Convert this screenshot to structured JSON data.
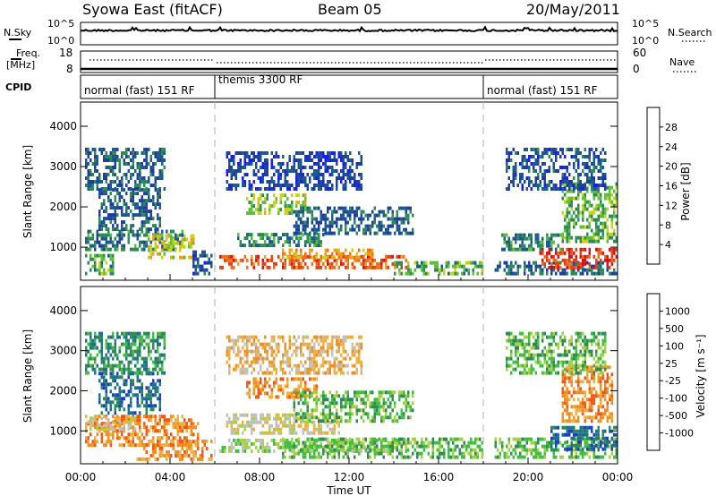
{
  "header": {
    "title": "Syowa East (fitACF)",
    "beam": "Beam 05",
    "date": "20/May/2011"
  },
  "nsky_panel": {
    "left_label": "N.Sky",
    "left_top_tick": "10^5",
    "left_bottom_tick": "10^0",
    "right_label": "N.Search",
    "right_top_tick": "10^5",
    "right_bottom_tick": "10^0"
  },
  "freq_panel": {
    "left_label_line1": "Freq.",
    "left_label_line2": "[MHz]",
    "left_top_tick": "18",
    "left_bottom_tick": "8",
    "right_label": "Nave",
    "right_top_tick": "60",
    "right_bottom_tick": "0"
  },
  "cpid_panel": {
    "label": "CPID",
    "segments": [
      {
        "start_hour": 0,
        "end_hour": 6,
        "text": "normal (fast) 151 RF"
      },
      {
        "start_hour": 6,
        "end_hour": 18,
        "text": "themis 3300 RF"
      },
      {
        "start_hour": 18,
        "end_hour": 24,
        "text": "normal (fast) 151 RF"
      }
    ]
  },
  "colors": {
    "power_scale": [
      "#1a1aff",
      "#1f3f9f",
      "#1c5a8f",
      "#2e8b57",
      "#5bbf3a",
      "#c8d21e",
      "#f0a020",
      "#f07018",
      "#e84010",
      "#e01010"
    ],
    "velocity_scale": [
      "#e01010",
      "#f05818",
      "#f09020",
      "#f0b040",
      "#c0c0c0",
      "#a8d040",
      "#40c040",
      "#2e8b57",
      "#1f6f8f",
      "#1a3fbf"
    ],
    "axis": "#000000",
    "dashed_line": "#b0b0b0"
  },
  "chart_data": [
    {
      "type": "heatmap",
      "name": "power",
      "ylabel": "Slant Range [km]",
      "yticks": [
        1000,
        2000,
        3000,
        4000
      ],
      "ylim": [
        180,
        4600
      ],
      "xlim": [
        0,
        24
      ],
      "colorbar": {
        "label": "Power [dB]",
        "ticks": [
          "4",
          "8",
          "12",
          "16",
          "20",
          "24",
          "28"
        ],
        "range": [
          0,
          30
        ]
      },
      "blobs": [
        {
          "t0": 0.2,
          "t1": 1.5,
          "r0": 300,
          "r1": 800,
          "v": 12
        },
        {
          "t0": 0.2,
          "t1": 4.6,
          "r0": 900,
          "r1": 1400,
          "v": 9
        },
        {
          "t0": 0.8,
          "t1": 3.6,
          "r0": 1400,
          "r1": 2400,
          "v": 7
        },
        {
          "t0": 3.0,
          "t1": 5.0,
          "r0": 700,
          "r1": 1300,
          "v": 17
        },
        {
          "t0": 5.0,
          "t1": 5.8,
          "r0": 300,
          "r1": 900,
          "v": 6
        },
        {
          "t0": 0.2,
          "t1": 3.8,
          "r0": 2400,
          "r1": 3400,
          "v": 7
        },
        {
          "t0": 6.2,
          "t1": 14.5,
          "r0": 450,
          "r1": 800,
          "v": 24
        },
        {
          "t0": 9.0,
          "t1": 13.0,
          "r0": 700,
          "r1": 950,
          "v": 20
        },
        {
          "t0": 14.0,
          "t1": 18.0,
          "r0": 300,
          "r1": 600,
          "v": 12
        },
        {
          "t0": 7.0,
          "t1": 10.8,
          "r0": 1000,
          "r1": 1300,
          "v": 10
        },
        {
          "t0": 7.4,
          "t1": 10.0,
          "r0": 1800,
          "r1": 2300,
          "v": 15
        },
        {
          "t0": 9.5,
          "t1": 14.8,
          "r0": 1300,
          "r1": 2000,
          "v": 7
        },
        {
          "t0": 6.5,
          "t1": 12.5,
          "r0": 2400,
          "r1": 3300,
          "v": 5
        },
        {
          "t0": 18.5,
          "t1": 24.0,
          "r0": 300,
          "r1": 650,
          "v": 8
        },
        {
          "t0": 20.5,
          "t1": 24.0,
          "r0": 450,
          "r1": 900,
          "v": 26
        },
        {
          "t0": 18.8,
          "t1": 21.5,
          "r0": 900,
          "r1": 1300,
          "v": 10
        },
        {
          "t0": 21.5,
          "t1": 24.0,
          "r0": 1100,
          "r1": 2600,
          "v": 13
        },
        {
          "t0": 19.0,
          "t1": 23.5,
          "r0": 2400,
          "r1": 3400,
          "v": 6
        }
      ]
    },
    {
      "type": "heatmap",
      "name": "velocity",
      "ylabel": "Slant Range [km]",
      "xlabel": "Time UT",
      "xticks": [
        "00:00",
        "04:00",
        "08:00",
        "12:00",
        "16:00",
        "20:00",
        "00:00"
      ],
      "yticks": [
        1000,
        2000,
        3000,
        4000
      ],
      "ylim": [
        180,
        4600
      ],
      "xlim": [
        0,
        24
      ],
      "colorbar": {
        "label": "Velocity [m s⁻¹]",
        "ticks": [
          "1000",
          "500",
          "100",
          "25",
          "-25",
          "-100",
          "-500",
          "-1000"
        ]
      },
      "blobs": [
        {
          "t0": 0.2,
          "t1": 5.2,
          "r0": 600,
          "r1": 1400,
          "v": 2
        },
        {
          "t0": 0.3,
          "t1": 2.5,
          "r0": 1000,
          "r1": 1300,
          "v": 4
        },
        {
          "t0": 0.8,
          "t1": 3.6,
          "r0": 1400,
          "r1": 2400,
          "v": 8
        },
        {
          "t0": 0.2,
          "t1": 3.8,
          "r0": 2400,
          "r1": 3400,
          "v": 7
        },
        {
          "t0": 2.5,
          "t1": 5.8,
          "r0": 250,
          "r1": 700,
          "v": 2
        },
        {
          "t0": 6.2,
          "t1": 14.5,
          "r0": 450,
          "r1": 800,
          "v": 5
        },
        {
          "t0": 9.0,
          "t1": 18.0,
          "r0": 300,
          "r1": 750,
          "v": 6
        },
        {
          "t0": 6.5,
          "t1": 11.5,
          "r0": 900,
          "r1": 1400,
          "v": 4
        },
        {
          "t0": 7.4,
          "t1": 10.5,
          "r0": 1800,
          "r1": 2300,
          "v": 2
        },
        {
          "t0": 9.5,
          "t1": 14.8,
          "r0": 1200,
          "r1": 2000,
          "v": 6
        },
        {
          "t0": 6.5,
          "t1": 12.5,
          "r0": 2400,
          "r1": 3300,
          "v": 3
        },
        {
          "t0": 18.5,
          "t1": 24.0,
          "r0": 300,
          "r1": 750,
          "v": 6
        },
        {
          "t0": 21.0,
          "t1": 24.0,
          "r0": 500,
          "r1": 1100,
          "v": 8
        },
        {
          "t0": 21.5,
          "t1": 23.8,
          "r0": 1200,
          "r1": 2600,
          "v": 2
        },
        {
          "t0": 19.0,
          "t1": 23.5,
          "r0": 2400,
          "r1": 3400,
          "v": 6
        }
      ]
    }
  ]
}
